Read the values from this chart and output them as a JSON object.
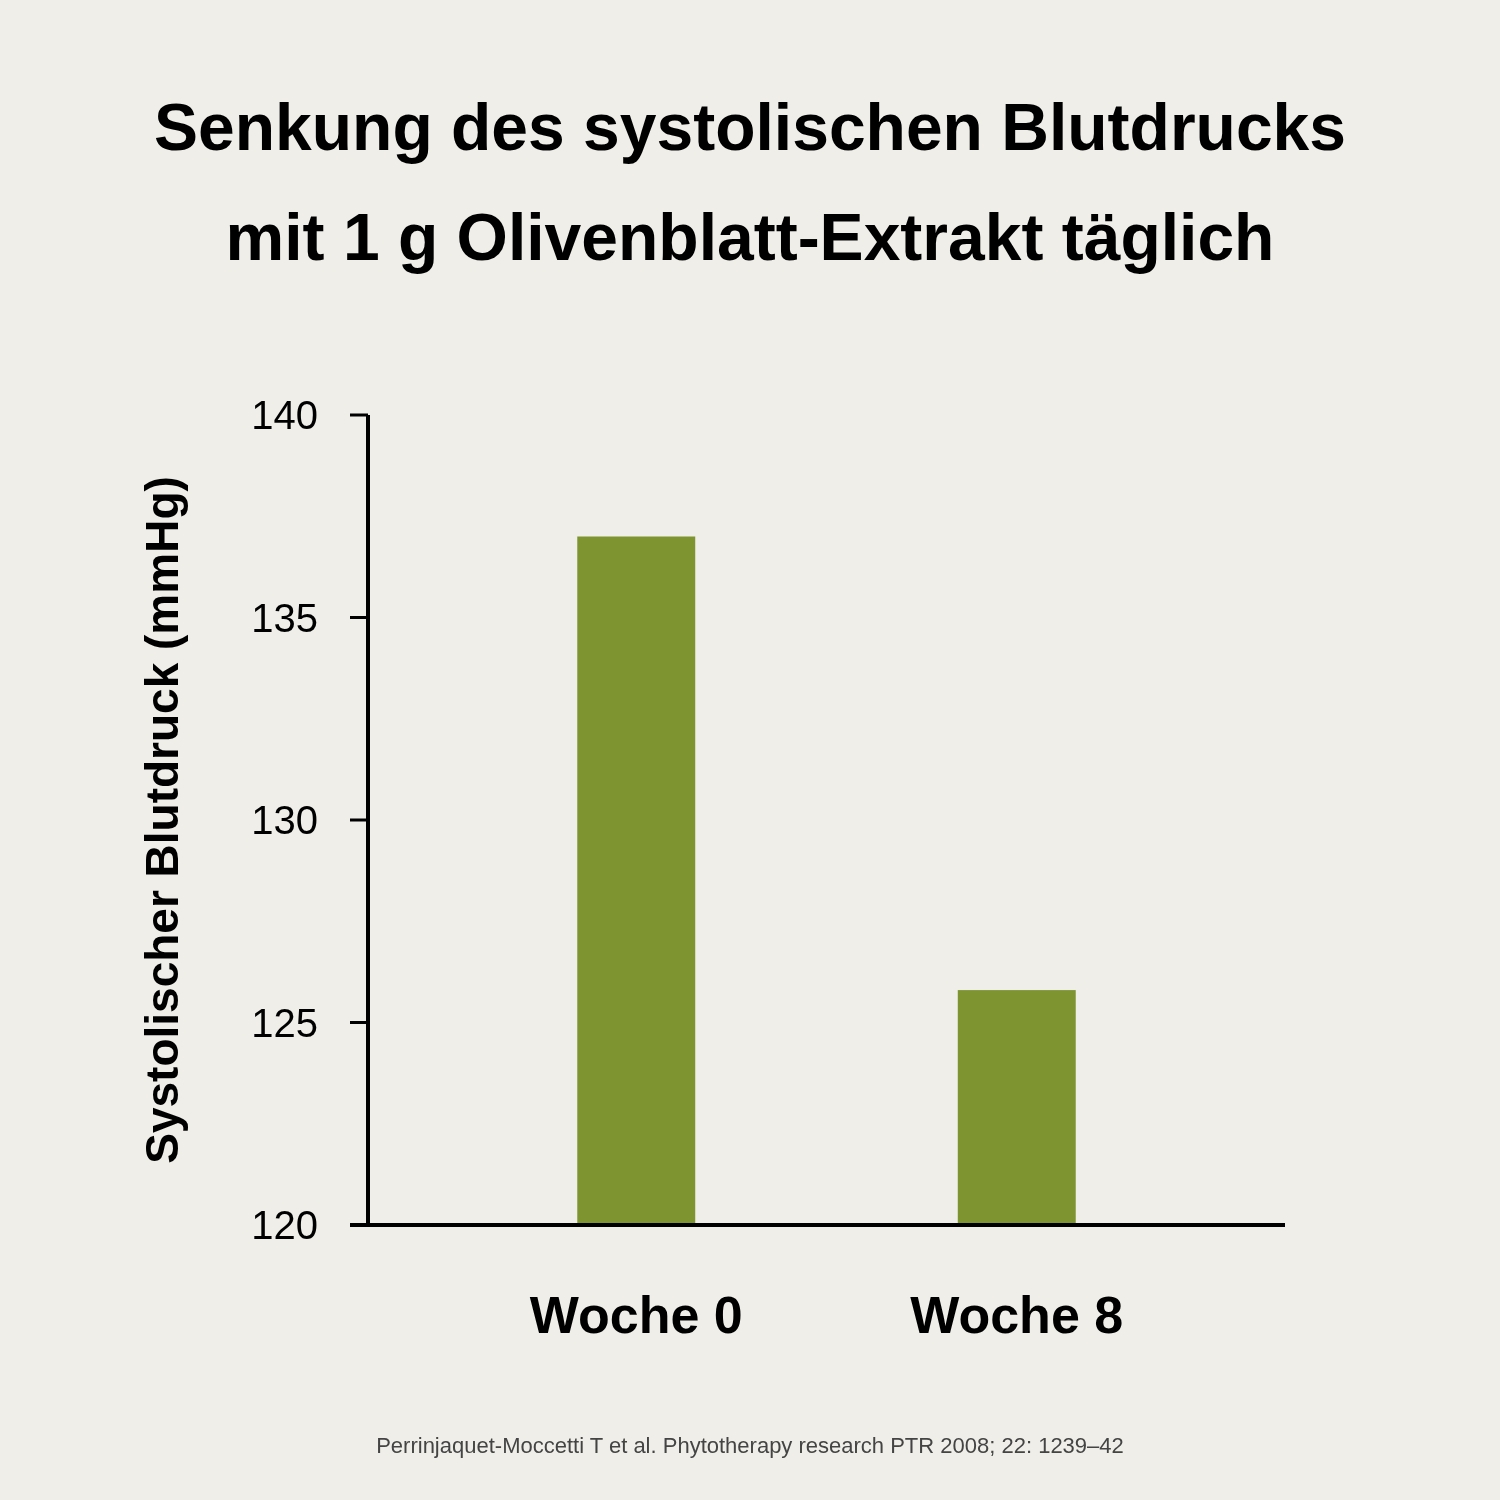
{
  "chart_data": {
    "type": "bar",
    "title": "Senkung des systolischen Blutdrucks mit 1 g Olivenblatt-Extrakt täglich",
    "ylabel": "Systolischer Blutdruck (mmHg)",
    "categories": [
      "Woche 0",
      "Woche 8"
    ],
    "values": [
      137.0,
      125.8
    ],
    "color": "#7d9431",
    "ylim": [
      120,
      140
    ],
    "yticks": [
      120,
      125,
      130,
      135,
      140
    ],
    "grid": false,
    "annotations": [
      "Perrinjaquet-Moccetti T et al. Phytotherapy research PTR 2008; 22: 1239–42"
    ]
  }
}
